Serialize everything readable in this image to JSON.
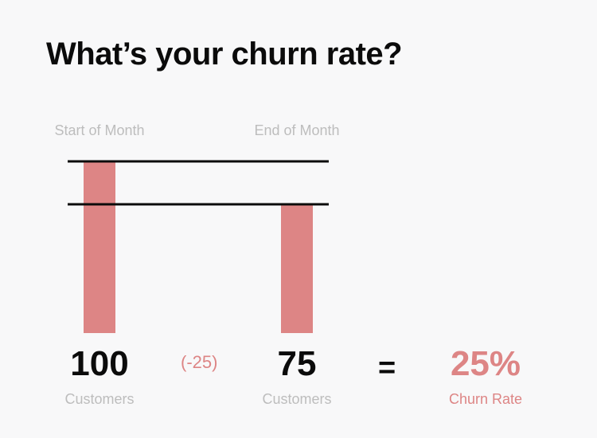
{
  "title": "What’s your churn rate?",
  "colors": {
    "bar": "#dd8585",
    "line": "#0b0b0b",
    "label": "#bdbdbd",
    "accent": "#dd8585",
    "background": "#f8f8f9"
  },
  "chart_data": {
    "type": "bar",
    "categories": [
      "Start of Month",
      "End of Month"
    ],
    "values": [
      100,
      75
    ],
    "ylim": [
      0,
      100
    ]
  },
  "stats": {
    "start": {
      "value": "100",
      "label": "Customers"
    },
    "difference": "(-25)",
    "end": {
      "value": "75",
      "label": "Customers"
    },
    "equals": "=",
    "rate": {
      "value": "25%",
      "label": "Churn Rate"
    }
  }
}
